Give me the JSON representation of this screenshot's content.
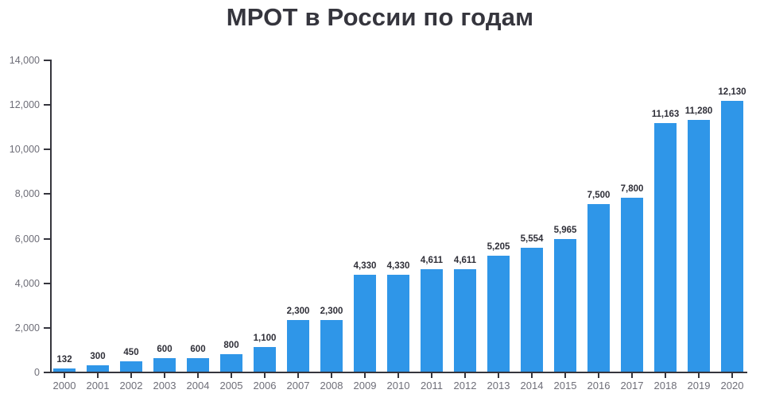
{
  "chart_data": {
    "type": "bar",
    "title": "МРОТ в России по годам",
    "categories": [
      "2000",
      "2001",
      "2002",
      "2003",
      "2004",
      "2005",
      "2006",
      "2007",
      "2008",
      "2009",
      "2010",
      "2011",
      "2012",
      "2013",
      "2014",
      "2015",
      "2016",
      "2017",
      "2018",
      "2019",
      "2020"
    ],
    "values": [
      132,
      300,
      450,
      600,
      600,
      800,
      1100,
      2300,
      2300,
      4330,
      4330,
      4611,
      4611,
      5205,
      5554,
      5965,
      7500,
      7800,
      11163,
      11280,
      12130
    ],
    "value_labels": [
      "132",
      "300",
      "450",
      "600",
      "600",
      "800",
      "1,100",
      "2,300",
      "2,300",
      "4,330",
      "4,330",
      "4,611",
      "4,611",
      "5,205",
      "5,554",
      "5,965",
      "7,500",
      "7,800",
      "11,163",
      "11,280",
      "12,130"
    ],
    "xlabel": "",
    "ylabel": "",
    "ylim": [
      0,
      14000
    ],
    "ytick_step": 2000,
    "ytick_labels": [
      "0",
      "2,000",
      "4,000",
      "6,000",
      "8,000",
      "10,000",
      "12,000",
      "14,000"
    ],
    "grid": false,
    "legend": "none",
    "bar_color": "#2f96e8",
    "axis_color": "#35353d",
    "value_label_color": "#2f2f38",
    "tick_label_color": "#6e6e78",
    "title_color": "#35353d"
  }
}
